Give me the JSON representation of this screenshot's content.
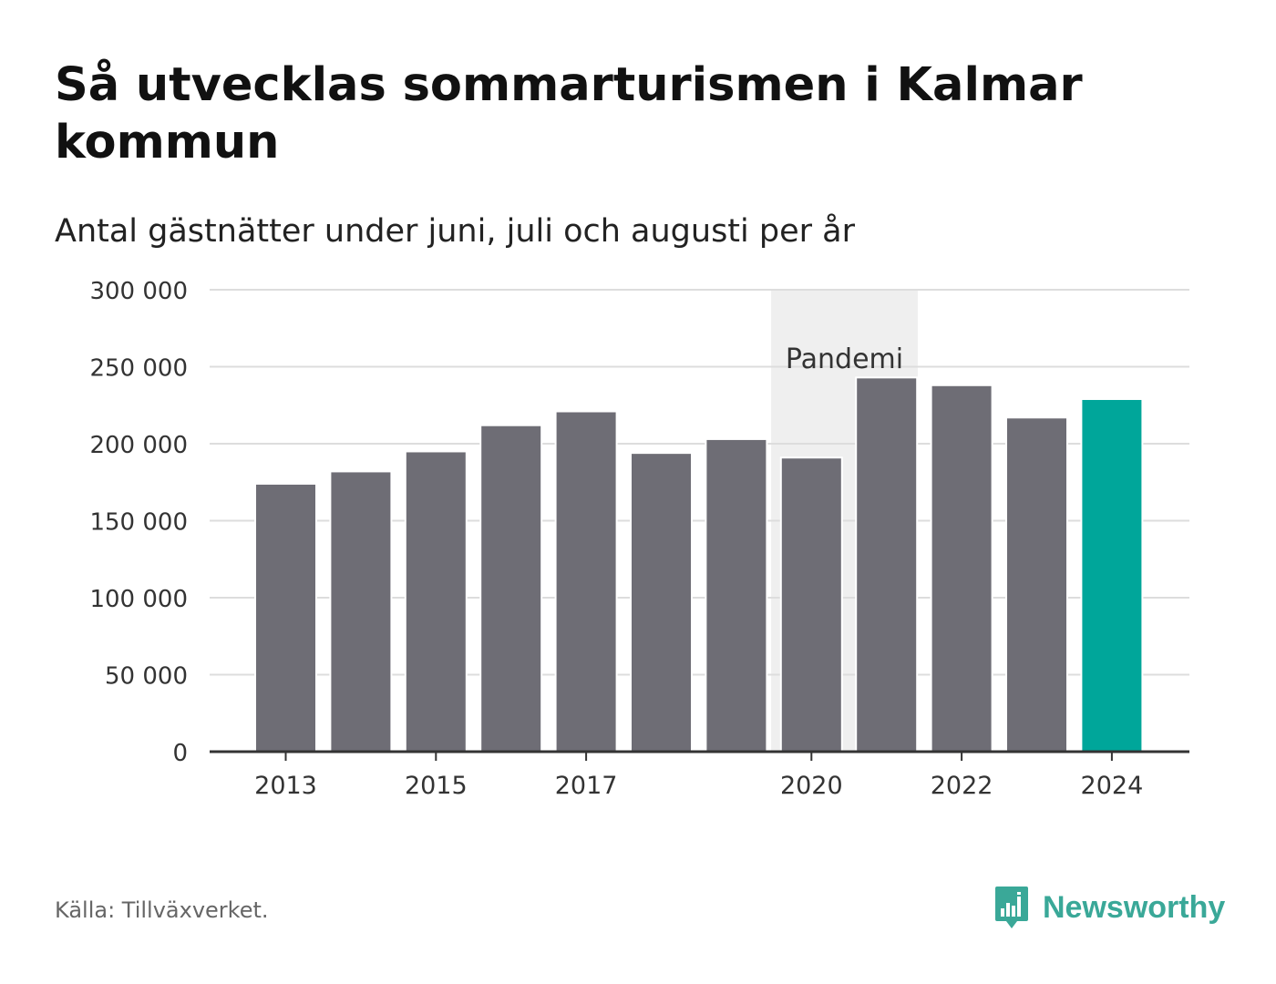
{
  "title": "Så utvecklas sommarturismen i Kalmar kommun",
  "subtitle": "Antal gästnätter under juni, juli och augusti per år",
  "source": "Källa: Tillväxverket.",
  "brand": {
    "name": "Newsworthy",
    "icon": "bar-chart-speech-bubble-icon",
    "color": "#3aa898"
  },
  "colors": {
    "bar": "#6e6d75",
    "highlight": "#00a69a",
    "band": "#efefef",
    "grid": "#dddddd",
    "axis": "#333333"
  },
  "chart_data": {
    "type": "bar",
    "title": "Så utvecklas sommarturismen i Kalmar kommun",
    "subtitle": "Antal gästnätter under juni, juli och augusti per år",
    "categories": [
      "2013",
      "2014",
      "2015",
      "2016",
      "2017",
      "2018",
      "2019",
      "2020",
      "2021",
      "2022",
      "2023",
      "2024"
    ],
    "values": [
      174000,
      182000,
      195000,
      212000,
      221000,
      194000,
      203000,
      191000,
      243000,
      238000,
      217000,
      229000
    ],
    "highlight_category": "2024",
    "ylim": [
      0,
      300000
    ],
    "y_ticks": [
      {
        "value": 0,
        "label": "0"
      },
      {
        "value": 50000,
        "label": "50 000"
      },
      {
        "value": 100000,
        "label": "100 000"
      },
      {
        "value": 150000,
        "label": "150 000"
      },
      {
        "value": 200000,
        "label": "200 000"
      },
      {
        "value": 250000,
        "label": "250 000"
      },
      {
        "value": 300000,
        "label": "300 000"
      }
    ],
    "x_tick_labels": [
      "2013",
      "2015",
      "2017",
      "2020",
      "2022",
      "2024"
    ],
    "annotation": {
      "label": "Pandemi",
      "from": "2020",
      "to": "2021"
    },
    "grid": true,
    "legend": "none"
  }
}
